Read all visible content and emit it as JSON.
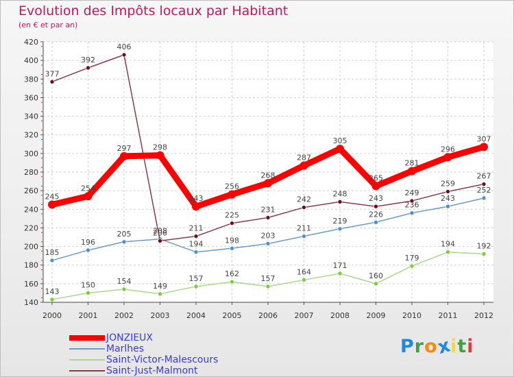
{
  "header": {
    "title": "Evolution des Impôts locaux par Habitant",
    "subtitle": "(en € et par an)"
  },
  "logo": {
    "text": "Proxiti",
    "letters": [
      "P",
      "r",
      "o",
      "x",
      "i",
      "t",
      "i"
    ],
    "colors": [
      "#1e88e5",
      "#43a047",
      "#fb8c00",
      "#1e88e5",
      "#fdd835",
      "#43a047",
      "#e53935"
    ]
  },
  "chart_data": {
    "type": "line",
    "title": "Evolution des Impôts locaux par Habitant",
    "subtitle": "(en € et par an)",
    "xlabel": "",
    "ylabel": "",
    "x": [
      "2000",
      "2001",
      "2002",
      "2003",
      "2004",
      "2005",
      "2006",
      "2007",
      "2008",
      "2009",
      "2010",
      "2011",
      "2012"
    ],
    "ylim": [
      140,
      420
    ],
    "yticks": [
      140,
      160,
      180,
      200,
      220,
      240,
      260,
      280,
      300,
      320,
      340,
      360,
      380,
      400,
      420
    ],
    "grid": true,
    "legend_position": "bottom-left",
    "series": [
      {
        "name": "JONZIEUX",
        "color": "#ff0000",
        "marker_color": "#ff0000",
        "style": "bold",
        "values": [
          245,
          254,
          297,
          298,
          243,
          256,
          268,
          287,
          305,
          265,
          281,
          296,
          307
        ]
      },
      {
        "name": "Marlhes",
        "color": "#6b9bc3",
        "marker_color": "#4a90d9",
        "style": "thin",
        "values": [
          185,
          196,
          205,
          208,
          194,
          198,
          203,
          211,
          219,
          226,
          236,
          243,
          252
        ]
      },
      {
        "name": "Saint-Victor-Malescours",
        "color": "#a8d98a",
        "marker_color": "#7ccc3a",
        "style": "thin",
        "values": [
          143,
          150,
          154,
          149,
          157,
          162,
          157,
          164,
          171,
          160,
          179,
          194,
          192
        ]
      },
      {
        "name": "Saint-Just-Malmont",
        "color": "#8b3a4a",
        "marker_color": "#6b0f1a",
        "style": "thin",
        "values": [
          377,
          392,
          406,
          206,
          211,
          225,
          231,
          242,
          248,
          243,
          249,
          259,
          267
        ]
      }
    ]
  }
}
